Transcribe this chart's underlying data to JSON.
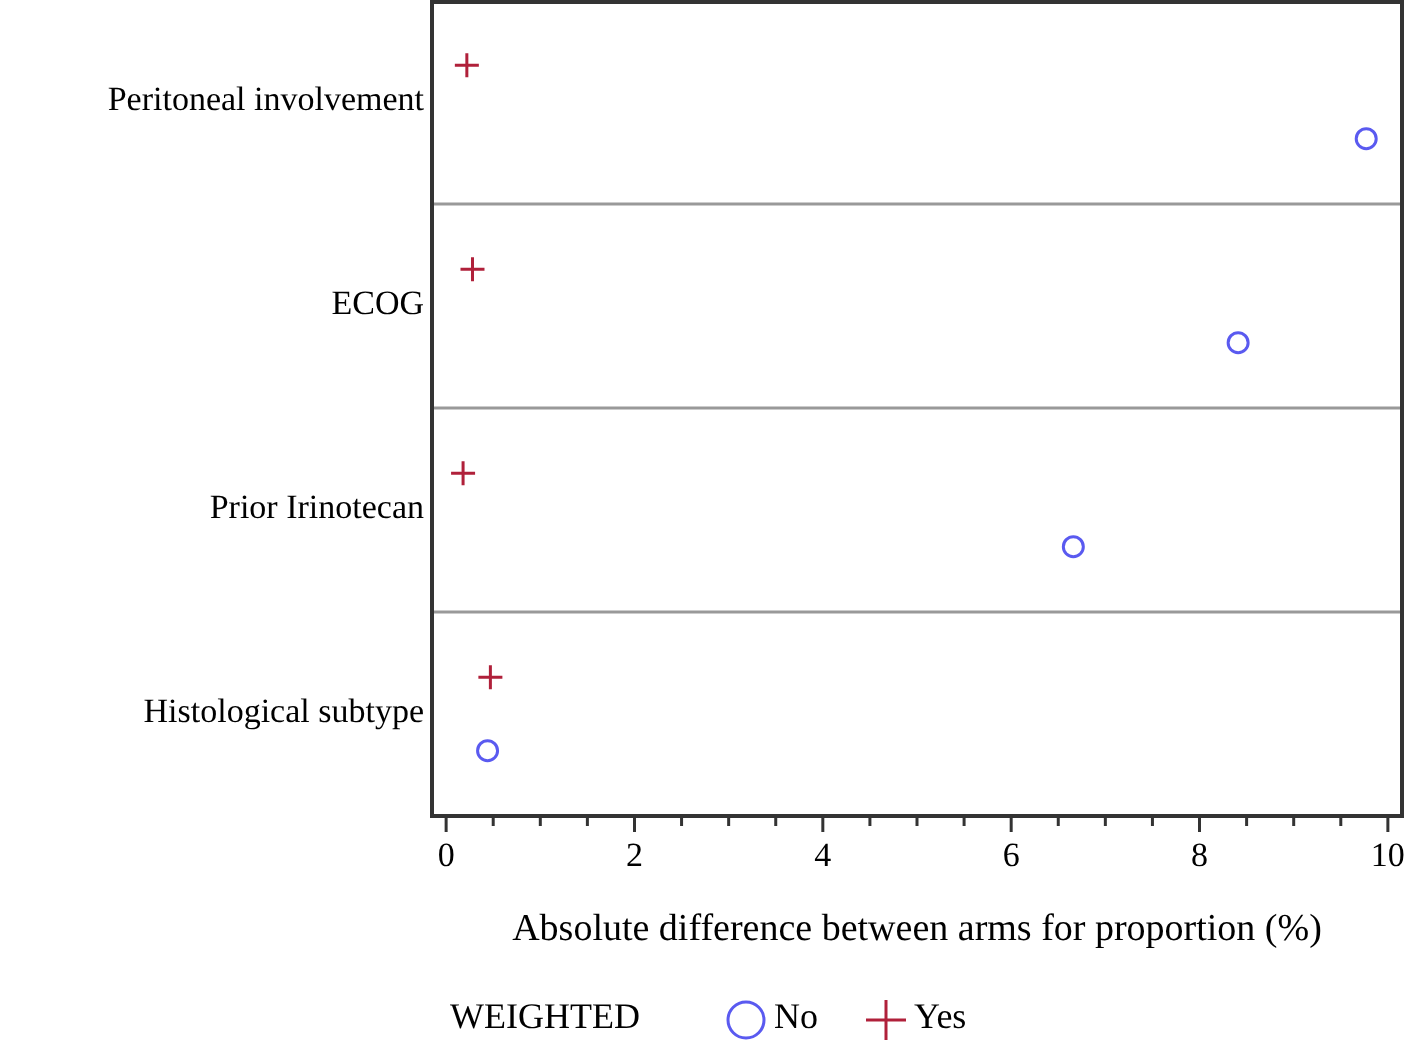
{
  "chart_data": {
    "type": "scatter",
    "orientation": "horizontal",
    "xlabel": "Absolute difference between arms for proportion (%)",
    "legend_title": "WEIGHTED",
    "legend": "bottom",
    "categories": [
      "Peritoneal involvement",
      "ECOG",
      "Prior Irinotecan",
      "Histological subtype"
    ],
    "xlim": [
      -0.15,
      10.15
    ],
    "xticks": [
      0,
      {
        "value": 0.5,
        "label": null
      },
      {
        "value": 1,
        "label": null
      },
      {
        "value": 1.5,
        "label": null
      },
      2,
      {
        "value": 2.5,
        "label": null
      },
      {
        "value": 3,
        "label": null
      },
      {
        "value": 3.5,
        "label": null
      },
      4,
      {
        "value": 4.5,
        "label": null
      },
      {
        "value": 5,
        "label": null
      },
      {
        "value": 5.5,
        "label": null
      },
      6,
      {
        "value": 6.5,
        "label": null
      },
      {
        "value": 7,
        "label": null
      },
      {
        "value": 7.5,
        "label": null
      },
      8,
      {
        "value": 8.5,
        "label": null
      },
      {
        "value": 9,
        "label": null
      },
      {
        "value": 9.5,
        "label": null
      },
      10
    ],
    "series": [
      {
        "name": "No",
        "color": "#5a5af0",
        "marker": "circle",
        "values": [
          9.77,
          8.41,
          6.66,
          0.44
        ]
      },
      {
        "name": "Yes",
        "color": "#b0203a",
        "marker": "cross",
        "values": [
          0.22,
          0.28,
          0.18,
          0.47
        ]
      }
    ]
  }
}
